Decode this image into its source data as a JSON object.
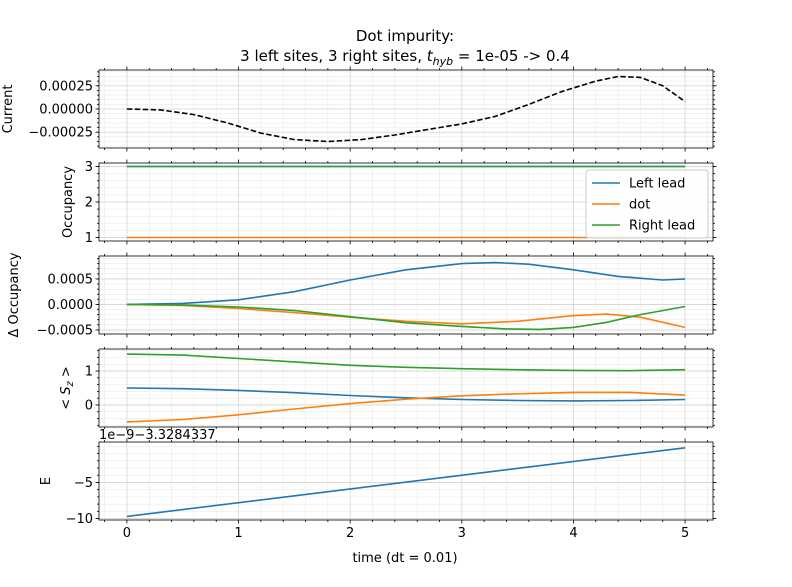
{
  "title_line1": "Dot impurity:",
  "title_line2_pre": "3 left sites, 3 right sites, ",
  "title_line2_sym": "t",
  "title_line2_sub": "hyb",
  "title_line2_post": " = 1e-05 -> 0.4",
  "xlabel": "time (dt = 0.01)",
  "colors": {
    "blue": "#1f77b4",
    "orange": "#ff7f0e",
    "green": "#2ca02c",
    "black": "#000000"
  },
  "chart_data": [
    {
      "type": "line",
      "ylabel": "Current",
      "xlim": [
        -0.25,
        5.25
      ],
      "ylim": [
        -0.00042,
        0.00042
      ],
      "xticks": [
        "0",
        "1",
        "2",
        "3",
        "4",
        "5"
      ],
      "yticks": [
        {
          "v": 0.00025,
          "label": "0.00025"
        },
        {
          "v": 0.0,
          "label": "0.00000"
        },
        {
          "v": -0.00025,
          "label": "−0.00025"
        }
      ],
      "series": [
        {
          "color": "#000000",
          "dashed": true,
          "x": [
            0,
            0.3,
            0.6,
            0.9,
            1.2,
            1.5,
            1.8,
            2.1,
            2.4,
            2.7,
            3.0,
            3.3,
            3.6,
            3.9,
            4.2,
            4.4,
            4.6,
            4.8,
            5.0
          ],
          "y": [
            0.0,
            -1e-05,
            -6e-05,
            -0.00015,
            -0.00026,
            -0.00033,
            -0.00035,
            -0.00033,
            -0.00028,
            -0.00022,
            -0.00016,
            -8e-05,
            5e-05,
            0.00019,
            0.0003,
            0.00035,
            0.00034,
            0.00025,
            8e-05
          ]
        }
      ]
    },
    {
      "type": "line",
      "ylabel": "Occupancy",
      "xlim": [
        -0.25,
        5.25
      ],
      "ylim": [
        0.9,
        3.1
      ],
      "xticks": [
        "0",
        "1",
        "2",
        "3",
        "4",
        "5"
      ],
      "yticks": [
        {
          "v": 1,
          "label": "1"
        },
        {
          "v": 2,
          "label": "2"
        },
        {
          "v": 3,
          "label": "3"
        }
      ],
      "legend": "upper right",
      "legend_entries": [
        "Left lead",
        "dot",
        "Right lead"
      ],
      "series": [
        {
          "name": "Left lead",
          "color": "#1f77b4",
          "x": [
            0,
            5
          ],
          "y": [
            3,
            3
          ]
        },
        {
          "name": "dot",
          "color": "#ff7f0e",
          "x": [
            0,
            5
          ],
          "y": [
            1,
            1
          ]
        },
        {
          "name": "Right lead",
          "color": "#2ca02c",
          "x": [
            0,
            5
          ],
          "y": [
            3,
            3
          ]
        }
      ]
    },
    {
      "type": "line",
      "ylabel": "Δ Occupancy",
      "xlim": [
        -0.25,
        5.25
      ],
      "ylim": [
        -0.00058,
        0.00095
      ],
      "xticks": [
        "0",
        "1",
        "2",
        "3",
        "4",
        "5"
      ],
      "yticks": [
        {
          "v": 0.0005,
          "label": "0.0005"
        },
        {
          "v": 0.0,
          "label": "0.0000"
        },
        {
          "v": -0.0005,
          "label": "−0.0005"
        }
      ],
      "series": [
        {
          "color": "#1f77b4",
          "x": [
            0,
            0.5,
            1.0,
            1.5,
            2.0,
            2.5,
            3.0,
            3.3,
            3.6,
            4.0,
            4.4,
            4.8,
            5.0
          ],
          "y": [
            0.0,
            2e-05,
            9e-05,
            0.00025,
            0.00048,
            0.00068,
            0.0008,
            0.00082,
            0.00079,
            0.00068,
            0.00055,
            0.00048,
            0.0005
          ]
        },
        {
          "color": "#ff7f0e",
          "x": [
            0,
            0.5,
            1.0,
            1.5,
            2.0,
            2.5,
            3.0,
            3.5,
            4.0,
            4.3,
            4.6,
            5.0
          ],
          "y": [
            0.0,
            -2e-05,
            -8e-05,
            -0.00016,
            -0.00025,
            -0.00033,
            -0.00038,
            -0.00033,
            -0.00022,
            -0.00019,
            -0.00025,
            -0.00045
          ]
        },
        {
          "color": "#2ca02c",
          "x": [
            0,
            0.5,
            1.0,
            1.5,
            2.0,
            2.5,
            3.0,
            3.4,
            3.7,
            4.0,
            4.3,
            4.6,
            5.0
          ],
          "y": [
            0.0,
            -1e-05,
            -5e-05,
            -0.00012,
            -0.00024,
            -0.00036,
            -0.00043,
            -0.00048,
            -0.00049,
            -0.00045,
            -0.00035,
            -0.0002,
            -4e-05
          ]
        }
      ]
    },
    {
      "type": "line",
      "ylabel": "< S_z >",
      "ylabel_main": "< ",
      "ylabel_sym": "S",
      "ylabel_sub": "z",
      "ylabel_end": " >",
      "xlim": [
        -0.25,
        5.25
      ],
      "ylim": [
        -0.65,
        1.65
      ],
      "xticks": [
        "0",
        "1",
        "2",
        "3",
        "4",
        "5"
      ],
      "yticks": [
        {
          "v": 0,
          "label": "0"
        },
        {
          "v": 1,
          "label": "1"
        }
      ],
      "series": [
        {
          "color": "#1f77b4",
          "x": [
            0,
            0.5,
            1.0,
            1.5,
            2.0,
            2.5,
            3.0,
            3.5,
            4.0,
            4.5,
            5.0
          ],
          "y": [
            0.5,
            0.48,
            0.43,
            0.36,
            0.28,
            0.21,
            0.16,
            0.13,
            0.12,
            0.13,
            0.16
          ]
        },
        {
          "color": "#ff7f0e",
          "x": [
            0,
            0.5,
            1.0,
            1.5,
            2.0,
            2.5,
            3.0,
            3.5,
            4.0,
            4.5,
            5.0
          ],
          "y": [
            -0.5,
            -0.43,
            -0.29,
            -0.12,
            0.04,
            0.17,
            0.27,
            0.33,
            0.37,
            0.37,
            0.29
          ]
        },
        {
          "color": "#2ca02c",
          "x": [
            0,
            0.5,
            1.0,
            1.5,
            2.0,
            2.5,
            3.0,
            3.5,
            4.0,
            4.5,
            5.0
          ],
          "y": [
            1.5,
            1.47,
            1.37,
            1.27,
            1.17,
            1.11,
            1.07,
            1.04,
            1.02,
            1.01,
            1.04
          ]
        }
      ]
    },
    {
      "type": "line",
      "ylabel": "E",
      "offset_text": "1e−9−3.3284337",
      "xlim": [
        -0.25,
        5.25
      ],
      "ylim": [
        -10.2,
        0.6
      ],
      "xticks": [
        "0",
        "1",
        "2",
        "3",
        "4",
        "5"
      ],
      "yticks": [
        {
          "v": -5,
          "label": "−5"
        },
        {
          "v": -10,
          "label": "−10"
        }
      ],
      "series": [
        {
          "color": "#1f77b4",
          "x": [
            0,
            5
          ],
          "y": [
            -9.7,
            -0.2
          ]
        }
      ]
    }
  ]
}
